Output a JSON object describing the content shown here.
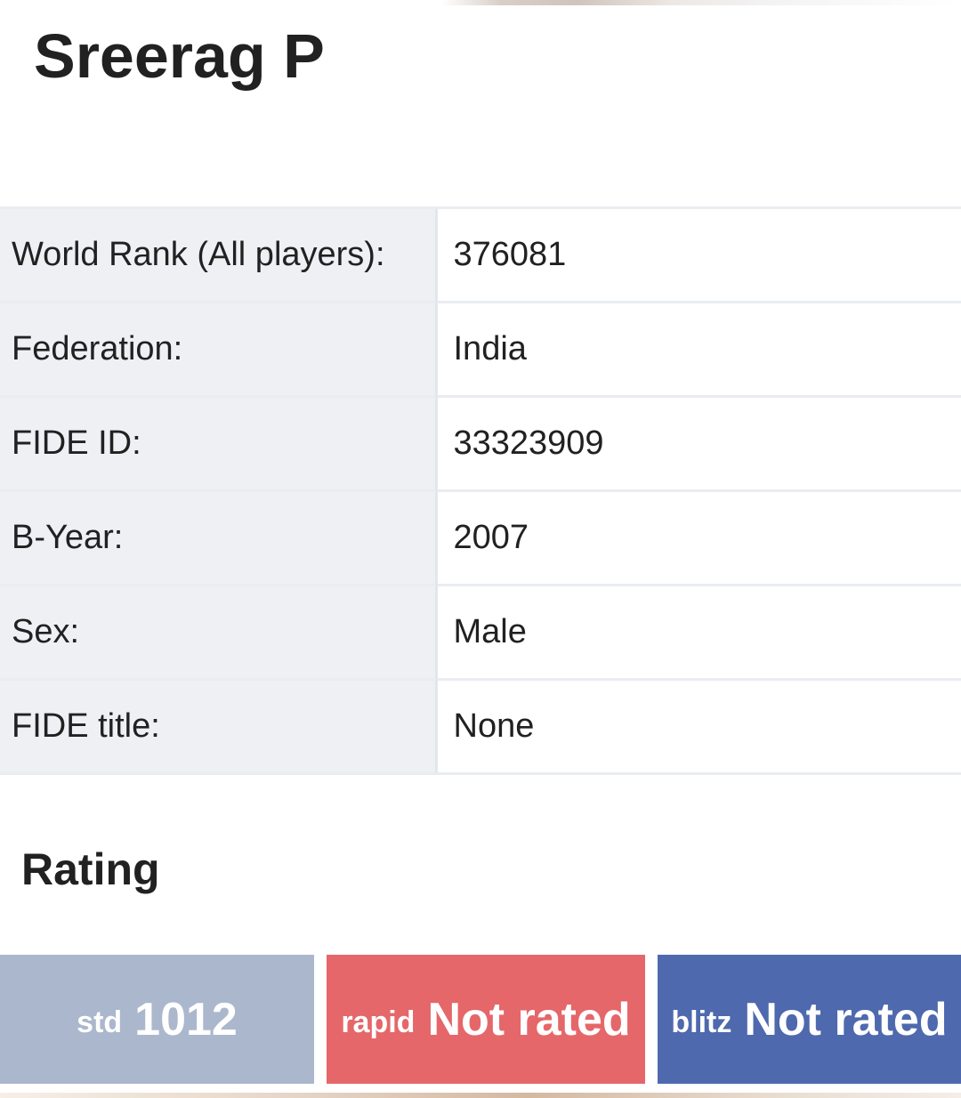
{
  "player": {
    "name": "Sreerag P"
  },
  "info": {
    "rows": [
      {
        "label": "World Rank (All players):",
        "value": "376081"
      },
      {
        "label": "Federation:",
        "value": "India"
      },
      {
        "label": "FIDE ID:",
        "value": "33323909"
      },
      {
        "label": "B-Year:",
        "value": "2007"
      },
      {
        "label": "Sex:",
        "value": "Male"
      },
      {
        "label": "FIDE title:",
        "value": "None"
      }
    ]
  },
  "rating": {
    "title": "Rating",
    "boxes": [
      {
        "kind": "std",
        "value": "1012",
        "color": "#abb7cc"
      },
      {
        "kind": "rapid",
        "value": "Not rated",
        "color": "#e5676a"
      },
      {
        "kind": "blitz",
        "value": "Not rated",
        "color": "#4e69ad"
      }
    ]
  }
}
